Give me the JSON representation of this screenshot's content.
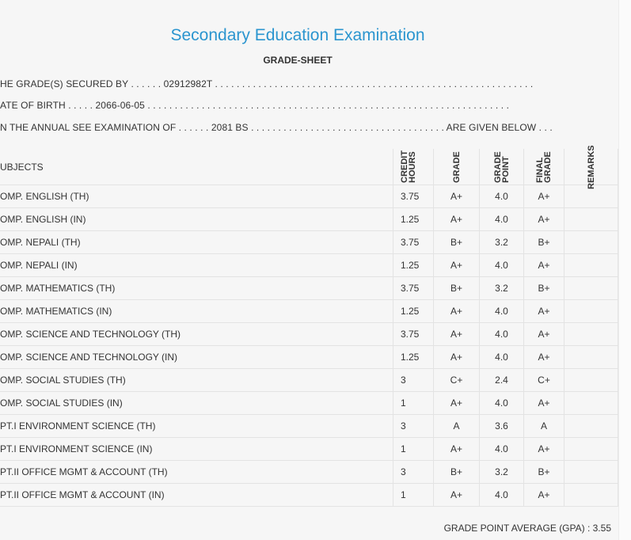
{
  "header": {
    "title": "Secondary Education Examination",
    "subtitle": "GRADE-SHEET"
  },
  "info": [
    "HE GRADE(S) SECURED BY . . . . . . 02912982T . . . . . . . . . . . . . . . . . . . . . . . . . . . . . . . . . . . . . . . . . . . . . . . . . . . . . . . . . . .",
    "ATE OF BIRTH . . . . . 2066-06-05 . . . . . . . . . . . . . . . . . . . . . . . . . . . . . . . . . . . . . . . . . . . . . . . . . . . . . . . . . . . . . . . . . . .",
    "N THE ANNUAL SEE EXAMINATION OF . . . . . . 2081 BS . . . . . . . . . . . . . . . . . . . . . . . . . . . . . . . . . . . . ARE GIVEN BELOW . . ."
  ],
  "table": {
    "columns": [
      "UBJECTS",
      "CREDIT HOURS",
      "GRADE",
      "GRADE POINT",
      "FINAL GRADE",
      "REMARKS"
    ],
    "rows": [
      [
        "OMP. ENGLISH (TH)",
        "3.75",
        "A+",
        "4.0",
        "A+"
      ],
      [
        "OMP. ENGLISH (IN)",
        "1.25",
        "A+",
        "4.0",
        "A+"
      ],
      [
        "OMP. NEPALI (TH)",
        "3.75",
        "B+",
        "3.2",
        "B+"
      ],
      [
        "OMP. NEPALI (IN)",
        "1.25",
        "A+",
        "4.0",
        "A+"
      ],
      [
        "OMP. MATHEMATICS (TH)",
        "3.75",
        "B+",
        "3.2",
        "B+"
      ],
      [
        "OMP. MATHEMATICS (IN)",
        "1.25",
        "A+",
        "4.0",
        "A+"
      ],
      [
        "OMP. SCIENCE AND TECHNOLOGY (TH)",
        "3.75",
        "A+",
        "4.0",
        "A+"
      ],
      [
        "OMP. SCIENCE AND TECHNOLOGY (IN)",
        "1.25",
        "A+",
        "4.0",
        "A+"
      ],
      [
        "OMP. SOCIAL STUDIES (TH)",
        "3",
        "C+",
        "2.4",
        "C+"
      ],
      [
        "OMP. SOCIAL STUDIES (IN)",
        "1",
        "A+",
        "4.0",
        "A+"
      ],
      [
        "PT.I ENVIRONMENT SCIENCE (TH)",
        "3",
        "A",
        "3.6",
        "A"
      ],
      [
        "PT.I ENVIRONMENT SCIENCE (IN)",
        "1",
        "A+",
        "4.0",
        "A+"
      ],
      [
        "PT.II OFFICE MGMT & ACCOUNT (TH)",
        "3",
        "B+",
        "3.2",
        "B+"
      ],
      [
        "PT.II OFFICE MGMT & ACCOUNT (IN)",
        "1",
        "A+",
        "4.0",
        "A+"
      ]
    ]
  },
  "footer": {
    "gpa": "GRADE POINT AVERAGE (GPA) : 3.55"
  }
}
